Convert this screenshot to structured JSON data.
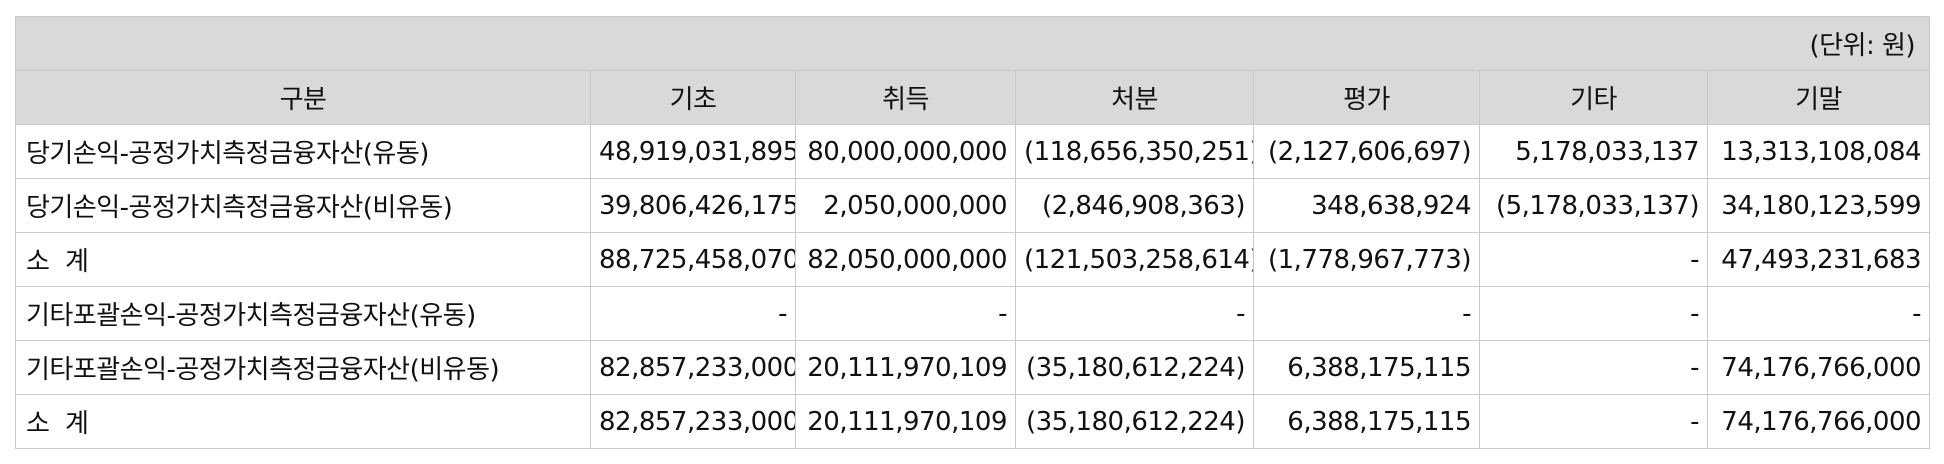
{
  "unit": "(단위: 원)",
  "headers": [
    "구분",
    "기초",
    "취득",
    "처분",
    "평가",
    "기타",
    "기말"
  ],
  "rows": [
    {
      "label": "당기손익-공정가치측정금융자산(유동)",
      "values": [
        "48,919,031,895",
        "80,000,000,000",
        "(118,656,350,251)",
        "(2,127,606,697)",
        "5,178,033,137",
        "13,313,108,084"
      ]
    },
    {
      "label": "당기손익-공정가치측정금융자산(비유동)",
      "values": [
        "39,806,426,175",
        "2,050,000,000",
        "(2,846,908,363)",
        "348,638,924",
        "(5,178,033,137)",
        "34,180,123,599"
      ]
    },
    {
      "label": "소  계",
      "values": [
        "88,725,458,070",
        "82,050,000,000",
        "(121,503,258,614)",
        "(1,778,967,773)",
        "-",
        "47,493,231,683"
      ]
    },
    {
      "label": "기타포괄손익-공정가치측정금융자산(유동)",
      "values": [
        "-",
        "-",
        "-",
        "-",
        "-",
        "-"
      ]
    },
    {
      "label": "기타포괄손익-공정가치측정금융자산(비유동)",
      "values": [
        "82,857,233,000",
        "20,111,970,109",
        "(35,180,612,224)",
        "6,388,175,115",
        "-",
        "74,176,766,000"
      ]
    },
    {
      "label": "소  계",
      "values": [
        "82,857,233,000",
        "20,111,970,109",
        "(35,180,612,224)",
        "6,388,175,115",
        "-",
        "74,176,766,000"
      ]
    }
  ]
}
